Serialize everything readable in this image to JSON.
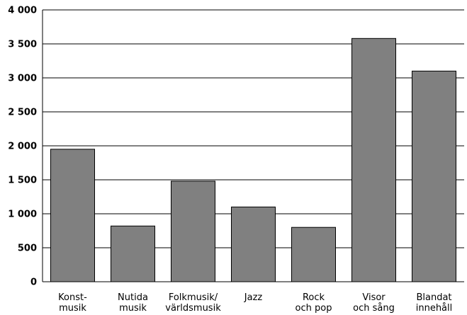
{
  "chart_data": {
    "type": "bar",
    "categories": [
      [
        "Konst-",
        "musik"
      ],
      [
        "Nutida",
        "musik"
      ],
      [
        "Folkmusik/",
        "världsmusik"
      ],
      [
        "Jazz"
      ],
      [
        "Rock",
        "och pop"
      ],
      [
        "Visor",
        "och sång"
      ],
      [
        "Blandat",
        "innehåll"
      ]
    ],
    "values": [
      1950,
      820,
      1480,
      1100,
      800,
      3580,
      3100
    ],
    "yticks": [
      "0",
      "500",
      "1 000",
      "1 500",
      "2 000",
      "2 500",
      "3 000",
      "3 500",
      "4 000"
    ],
    "ylim": [
      0,
      4000
    ],
    "grid": true,
    "colors": {
      "bar": "#808080",
      "bar_stroke": "#000000",
      "grid": "#000000"
    },
    "title": "",
    "xlabel": "",
    "ylabel": ""
  }
}
